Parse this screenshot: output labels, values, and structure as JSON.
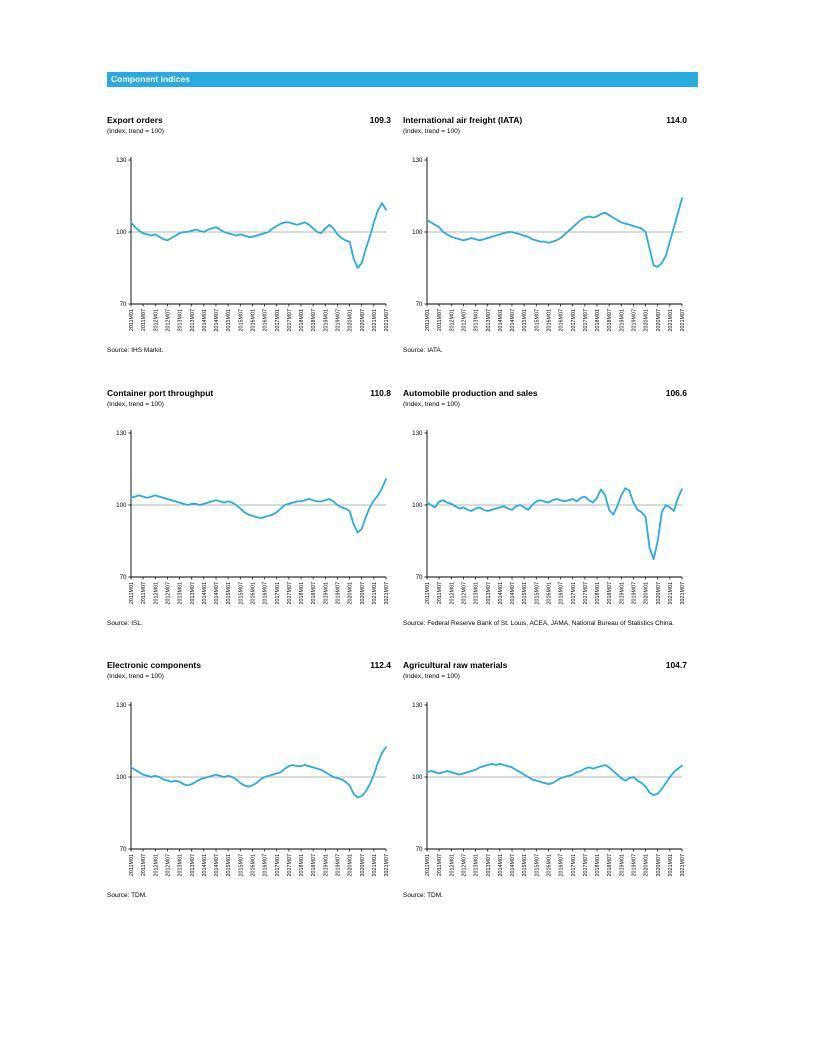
{
  "page": {
    "header": "Component indices"
  },
  "chart_data": [
    {
      "type": "line",
      "title": "Export orders",
      "value_label": "109.3",
      "subtitle": "(Index, trend = 100)",
      "source": "Source:  IHS Markit.",
      "ylim": [
        70,
        130
      ],
      "y_ticks": [
        130,
        100,
        70
      ],
      "reference_line": 100,
      "line_color": "#29abe2",
      "x_tick_labels": [
        "2011M01",
        "2011M07",
        "2012M01",
        "2012M07",
        "2013M01",
        "2013M07",
        "2014M01",
        "2014M07",
        "2015M01",
        "2015M07",
        "2016M01",
        "2016M07",
        "2017M01",
        "2017M07",
        "2018M01",
        "2018M07",
        "2019M01",
        "2019M07",
        "2020M01",
        "2020M07",
        "2021M01",
        "2021M07"
      ],
      "values": [
        104,
        102,
        100.5,
        99.5,
        99,
        98.5,
        99,
        98,
        97,
        96.5,
        97.5,
        98.5,
        99.5,
        100,
        100,
        100.5,
        101,
        100.5,
        100,
        101,
        101.5,
        102,
        101,
        100,
        99.5,
        99,
        98.5,
        99,
        98.5,
        98,
        98,
        98.5,
        99,
        99.5,
        100,
        101.5,
        102.5,
        103.5,
        104,
        104,
        103.5,
        103,
        103.5,
        104,
        103,
        101.5,
        100,
        99.5,
        101.5,
        103,
        101.5,
        99,
        97.5,
        96.5,
        96,
        89,
        85,
        87,
        93,
        98,
        104,
        109,
        112,
        109.3
      ]
    },
    {
      "type": "line",
      "title": "International air freight (IATA)",
      "value_label": "114.0",
      "subtitle": "(Index, trend = 100)",
      "source": "Source: IATA.",
      "ylim": [
        70,
        130
      ],
      "y_ticks": [
        130,
        100,
        70
      ],
      "reference_line": 100,
      "line_color": "#29abe2",
      "x_tick_labels": [
        "2011M01",
        "2011M07",
        "2012M01",
        "2012M07",
        "2013M01",
        "2013M07",
        "2014M01",
        "2014M07",
        "2015M01",
        "2015M07",
        "2016M01",
        "2016M07",
        "2017M01",
        "2017M07",
        "2018M01",
        "2018M07",
        "2019M01",
        "2019M07",
        "2020M01",
        "2020M07",
        "2021M01",
        "2021M07"
      ],
      "values": [
        105,
        104,
        103,
        102,
        100,
        99,
        98,
        97.5,
        97,
        96.5,
        97,
        97.5,
        97,
        96.5,
        97,
        97.5,
        98,
        98.5,
        99,
        99.5,
        100,
        100,
        99.5,
        99,
        98.5,
        98,
        97,
        96.5,
        96,
        96,
        95.5,
        96,
        96.5,
        97.5,
        99,
        100.5,
        102,
        103.5,
        105,
        106,
        106.5,
        106,
        106.5,
        107.5,
        108,
        107,
        106,
        105,
        104,
        103.5,
        103,
        102.5,
        102,
        101.5,
        100,
        93,
        86,
        85.5,
        87,
        90,
        96,
        102,
        108,
        114
      ]
    },
    {
      "type": "line",
      "title": "Container port throughput",
      "value_label": "110.8",
      "subtitle": "(Index, trend = 100)",
      "source": "Source: ISL.",
      "ylim": [
        70,
        130
      ],
      "y_ticks": [
        130,
        100,
        70
      ],
      "reference_line": 100,
      "line_color": "#29abe2",
      "x_tick_labels": [
        "2011M01",
        "2011M07",
        "2012M01",
        "2012M07",
        "2013M01",
        "2013M07",
        "2014M01",
        "2014M07",
        "2015M01",
        "2015M07",
        "2016M01",
        "2016M07",
        "2017M01",
        "2017M07",
        "2018M01",
        "2018M07",
        "2019M01",
        "2019M07",
        "2020M01",
        "2020M07",
        "2021M01",
        "2021M07"
      ],
      "values": [
        103,
        103.5,
        104,
        103.5,
        103,
        103.5,
        104,
        103.5,
        103,
        102.5,
        102,
        101.5,
        101,
        100.5,
        100,
        100.5,
        100.5,
        100,
        100.5,
        101,
        101.5,
        102,
        101.5,
        101,
        101.5,
        101,
        100,
        98.5,
        97,
        96,
        95.5,
        95,
        94.5,
        95,
        95.5,
        96,
        97,
        98.5,
        100,
        100.5,
        101,
        101.5,
        101.5,
        102,
        102.5,
        102,
        101.5,
        101.5,
        102,
        102.5,
        101.5,
        100,
        99,
        98.5,
        97.5,
        92,
        88.5,
        90,
        95,
        99,
        102,
        104,
        107,
        110.8
      ]
    },
    {
      "type": "line",
      "title": "Automobile production and sales",
      "value_label": "106.6",
      "subtitle": "(Index, trend = 100)",
      "source": "Source: Federal Reserve Bank of St. Louis, ACEA, JAMA, National Bureau of Statistics China.",
      "ylim": [
        70,
        130
      ],
      "y_ticks": [
        130,
        100,
        70
      ],
      "reference_line": 100,
      "line_color": "#29abe2",
      "x_tick_labels": [
        "2011M01",
        "2011M07",
        "2012M01",
        "2012M07",
        "2013M01",
        "2013M07",
        "2014M01",
        "2014M07",
        "2015M01",
        "2015M07",
        "2016M01",
        "2016M07",
        "2017M01",
        "2017M07",
        "2018M01",
        "2018M07",
        "2019M01",
        "2019M07",
        "2020M01",
        "2020M07",
        "2021M01",
        "2021M07"
      ],
      "values": [
        101,
        100,
        99,
        101.5,
        102,
        101,
        100.5,
        99.5,
        98.5,
        99,
        98,
        97.5,
        98.5,
        99,
        98,
        97.5,
        98,
        98.5,
        99,
        99.5,
        98.5,
        98,
        99.5,
        100,
        99,
        98,
        100,
        101.5,
        102,
        101.5,
        101,
        102,
        102.5,
        102,
        101.5,
        102,
        102.5,
        101.5,
        103,
        103.5,
        102,
        101,
        103,
        106.5,
        104,
        98,
        96,
        99.5,
        104,
        107,
        106,
        101,
        98,
        97,
        95,
        82,
        77.5,
        85,
        97,
        100,
        99,
        97.5,
        103,
        106.6
      ]
    },
    {
      "type": "line",
      "title": "Electronic components",
      "value_label": "112.4",
      "subtitle": "(Index, trend = 100)",
      "source": "Source: TDM.",
      "ylim": [
        70,
        130
      ],
      "y_ticks": [
        130,
        100,
        70
      ],
      "reference_line": 100,
      "line_color": "#29abe2",
      "x_tick_labels": [
        "2011M01",
        "2011M07",
        "2012M01",
        "2012M07",
        "2013M01",
        "2013M07",
        "2014M01",
        "2014M07",
        "2015M01",
        "2015M07",
        "2016M01",
        "2016M07",
        "2017M01",
        "2017M07",
        "2018M01",
        "2018M07",
        "2019M01",
        "2019M07",
        "2020M01",
        "2020M07",
        "2021M01",
        "2021M07"
      ],
      "values": [
        104,
        103,
        102,
        101,
        100.5,
        100,
        100.5,
        100,
        99,
        98.5,
        98,
        98.5,
        98,
        97,
        96.5,
        97,
        98,
        99,
        99.5,
        100,
        100.5,
        101,
        100.5,
        100,
        100.5,
        100,
        99,
        97.5,
        96.5,
        96,
        96.5,
        97.5,
        99,
        100,
        100.5,
        101,
        101.5,
        102,
        103.5,
        104.5,
        105,
        104.5,
        104.5,
        105,
        104.5,
        104,
        103.5,
        103,
        102,
        101,
        100,
        99.5,
        99,
        98,
        96.5,
        93,
        91.5,
        92,
        94,
        97,
        101,
        106,
        110,
        112.4
      ]
    },
    {
      "type": "line",
      "title": "Agricultural raw materials",
      "value_label": "104.7",
      "subtitle": "(Index, trend = 100)",
      "source": "Source: TDM.",
      "ylim": [
        70,
        130
      ],
      "y_ticks": [
        130,
        100,
        70
      ],
      "reference_line": 100,
      "line_color": "#29abe2",
      "x_tick_labels": [
        "2011M01",
        "2011M07",
        "2012M01",
        "2012M07",
        "2013M01",
        "2013M07",
        "2014M01",
        "2014M07",
        "2015M01",
        "2015M07",
        "2016M01",
        "2016M07",
        "2017M01",
        "2017M07",
        "2018M01",
        "2018M07",
        "2019M01",
        "2019M07",
        "2020M01",
        "2020M07",
        "2021M01",
        "2021M07"
      ],
      "values": [
        102,
        102.5,
        102,
        101.5,
        102,
        102.5,
        102,
        101.5,
        101,
        101.5,
        102,
        102.5,
        103,
        104,
        104.5,
        105,
        105.5,
        105,
        105.5,
        105,
        104.5,
        104,
        103,
        102,
        101,
        100,
        99,
        98.5,
        98,
        97.5,
        97,
        97.5,
        98.5,
        99.5,
        100,
        100.5,
        101,
        102,
        102.5,
        103.5,
        104,
        103.5,
        104,
        104.5,
        105,
        104,
        102.5,
        101,
        99.5,
        98.5,
        99.5,
        100,
        98.5,
        97.5,
        96,
        93.5,
        92.5,
        93,
        95,
        97.5,
        100,
        102,
        103.5,
        104.7
      ]
    }
  ]
}
